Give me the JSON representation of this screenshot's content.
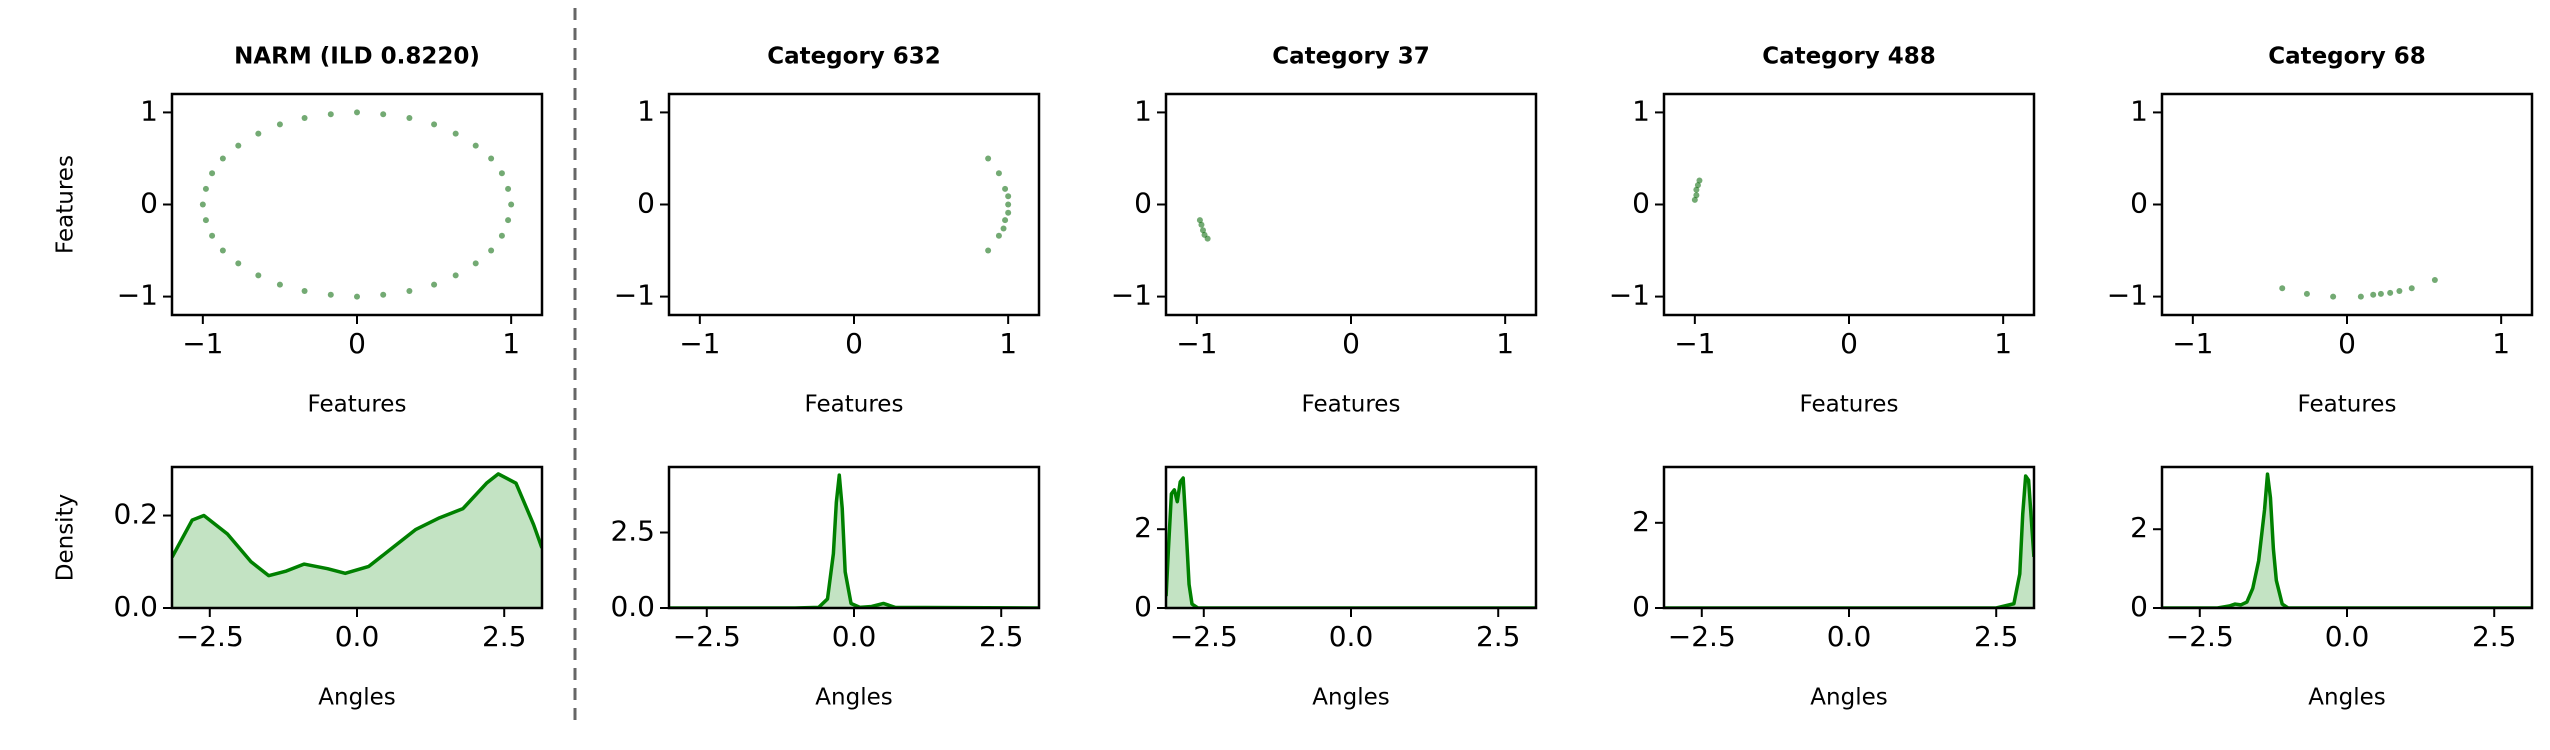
{
  "chart_data": [
    {
      "type": "scatter",
      "title": "NARM (ILD 0.8220)",
      "xlabel": "Features",
      "ylabel": "Features",
      "color": "#006400",
      "opacity": 0.55,
      "x": [
        1,
        0.98,
        0.94,
        0.87,
        0.77,
        0.64,
        0.5,
        0.34,
        0.17,
        0,
        -0.17,
        -0.34,
        -0.5,
        -0.64,
        -0.77,
        -0.87,
        -0.94,
        -0.98,
        -1,
        -0.98,
        -0.94,
        -0.87,
        -0.77,
        -0.64,
        -0.5,
        -0.34,
        -0.17,
        0,
        0.17,
        0.34,
        0.5,
        0.64,
        0.77,
        0.87,
        0.94,
        0.98
      ],
      "y": [
        0,
        0.17,
        0.34,
        0.5,
        0.64,
        0.77,
        0.87,
        0.94,
        0.98,
        1,
        0.98,
        0.94,
        0.87,
        0.77,
        0.64,
        0.5,
        0.34,
        0.17,
        0,
        -0.17,
        -0.34,
        -0.5,
        -0.64,
        -0.77,
        -0.87,
        -0.94,
        -0.98,
        -1,
        -0.98,
        -0.94,
        -0.87,
        -0.77,
        -0.64,
        -0.5,
        -0.34,
        -0.17
      ],
      "xlim": [
        -1.2,
        1.2
      ],
      "ylim": [
        -1.2,
        1.2
      ],
      "xticks": [
        {
          "value": -1,
          "label": "−1"
        },
        0,
        1
      ],
      "yticks": [
        {
          "value": -1,
          "label": "−1"
        },
        0,
        1
      ]
    },
    {
      "type": "area",
      "xlabel": "Angles",
      "ylabel": "Density",
      "color": "#008000",
      "fill": "#c3e3c3",
      "x": [
        -3.14,
        -2.8,
        -2.6,
        -2.2,
        -1.8,
        -1.5,
        -1.2,
        -0.9,
        -0.5,
        -0.2,
        0.2,
        0.6,
        1.0,
        1.4,
        1.8,
        2.2,
        2.4,
        2.7,
        3.0,
        3.14
      ],
      "values": [
        0.11,
        0.19,
        0.2,
        0.16,
        0.1,
        0.07,
        0.08,
        0.095,
        0.085,
        0.075,
        0.09,
        0.13,
        0.17,
        0.195,
        0.215,
        0.27,
        0.29,
        0.27,
        0.18,
        0.13
      ],
      "xlim": [
        -3.14159,
        3.14159
      ],
      "ylim": [
        0,
        0.305
      ],
      "xticks": [
        {
          "value": -2.5,
          "label": "−2.5"
        },
        {
          "value": 0,
          "label": "0.0"
        },
        2.5
      ],
      "yticks": [
        {
          "value": 0,
          "label": "0.0"
        },
        0.2
      ]
    },
    {
      "type": "scatter",
      "title": "Category 632",
      "xlabel": "Features",
      "color": "#006400",
      "opacity": 0.55,
      "x": [
        0.87,
        0.94,
        0.97,
        0.98,
        1.0,
        1,
        1.0,
        0.98,
        0.94,
        0.87
      ],
      "y": [
        -0.5,
        -0.34,
        -0.26,
        -0.17,
        -0.09,
        0,
        0.09,
        0.17,
        0.34,
        0.5
      ],
      "xlim": [
        -1.2,
        1.2
      ],
      "ylim": [
        -1.2,
        1.2
      ],
      "xticks": [
        {
          "value": -1,
          "label": "−1"
        },
        0,
        1
      ],
      "yticks": [
        {
          "value": -1,
          "label": "−1"
        },
        0,
        1
      ]
    },
    {
      "type": "area",
      "xlabel": "Angles",
      "color": "#008000",
      "fill": "#c3e3c3",
      "x": [
        -3.14,
        -1.0,
        -0.6,
        -0.45,
        -0.35,
        -0.3,
        -0.25,
        -0.2,
        -0.15,
        -0.05,
        0.1,
        0.3,
        0.5,
        0.7,
        3.14
      ],
      "values": [
        0,
        0,
        0.02,
        0.3,
        1.8,
        3.5,
        4.4,
        3.3,
        1.2,
        0.15,
        0.02,
        0.05,
        0.15,
        0.02,
        0
      ],
      "xlim": [
        -3.14159,
        3.14159
      ],
      "ylim": [
        0,
        4.67
      ],
      "xticks": [
        {
          "value": -2.5,
          "label": "−2.5"
        },
        {
          "value": 0,
          "label": "0.0"
        },
        2.5
      ],
      "yticks": [
        {
          "value": 0,
          "label": "0.0"
        },
        2.5
      ]
    },
    {
      "type": "scatter",
      "title": "Category 37",
      "xlabel": "Features",
      "color": "#006400",
      "opacity": 0.55,
      "x": [
        -0.98,
        -0.97,
        -0.96,
        -0.95,
        -0.93
      ],
      "y": [
        -0.17,
        -0.22,
        -0.28,
        -0.33,
        -0.37
      ],
      "xlim": [
        -1.2,
        1.2
      ],
      "ylim": [
        -1.2,
        1.2
      ],
      "xticks": [
        {
          "value": -1,
          "label": "−1"
        },
        0,
        1
      ],
      "yticks": [
        {
          "value": -1,
          "label": "−1"
        },
        0,
        1
      ]
    },
    {
      "type": "area",
      "xlabel": "Angles",
      "color": "#008000",
      "fill": "#c3e3c3",
      "x": [
        -3.14,
        -3.1,
        -3.05,
        -3.0,
        -2.95,
        -2.9,
        -2.85,
        -2.8,
        -2.75,
        -2.7,
        -2.6,
        3.14
      ],
      "values": [
        0.3,
        1.5,
        2.9,
        3.0,
        2.7,
        3.2,
        3.3,
        2.0,
        0.6,
        0.1,
        0,
        0
      ],
      "xlim": [
        -3.14159,
        3.14159
      ],
      "ylim": [
        0,
        3.58
      ],
      "xticks": [
        {
          "value": -2.5,
          "label": "−2.5"
        },
        {
          "value": 0,
          "label": "0.0"
        },
        2.5
      ],
      "yticks": [
        0,
        2
      ]
    },
    {
      "type": "scatter",
      "title": "Category 488",
      "xlabel": "Features",
      "color": "#006400",
      "opacity": 0.55,
      "x": [
        -0.97,
        -0.98,
        -0.99,
        -0.99,
        -1.0
      ],
      "y": [
        0.26,
        0.21,
        0.16,
        0.1,
        0.05
      ],
      "xlim": [
        -1.2,
        1.2
      ],
      "ylim": [
        -1.2,
        1.2
      ],
      "xticks": [
        {
          "value": -1,
          "label": "−1"
        },
        0,
        1
      ],
      "yticks": [
        {
          "value": -1,
          "label": "−1"
        },
        0,
        1
      ]
    },
    {
      "type": "area",
      "xlabel": "Angles",
      "color": "#008000",
      "fill": "#c3e3c3",
      "x": [
        -3.14,
        2.5,
        2.8,
        2.9,
        2.95,
        3.0,
        3.05,
        3.1,
        3.14
      ],
      "values": [
        0,
        0,
        0.1,
        0.8,
        2.2,
        3.1,
        3.0,
        2.0,
        1.2
      ],
      "xlim": [
        -3.14159,
        3.14159
      ],
      "ylim": [
        0,
        3.31
      ],
      "xticks": [
        {
          "value": -2.5,
          "label": "−2.5"
        },
        {
          "value": 0,
          "label": "0.0"
        },
        2.5
      ],
      "yticks": [
        0,
        2
      ]
    },
    {
      "type": "scatter",
      "title": "Category 68",
      "xlabel": "Features",
      "color": "#006400",
      "opacity": 0.55,
      "x": [
        -0.42,
        -0.26,
        -0.09,
        0.09,
        0.17,
        0.22,
        0.28,
        0.34,
        0.42,
        0.57
      ],
      "y": [
        -0.91,
        -0.97,
        -1.0,
        -1.0,
        -0.98,
        -0.97,
        -0.96,
        -0.94,
        -0.91,
        -0.82
      ],
      "xlim": [
        -1.2,
        1.2
      ],
      "ylim": [
        -1.2,
        1.2
      ],
      "xticks": [
        {
          "value": -1,
          "label": "−1"
        },
        0,
        1
      ],
      "yticks": [
        {
          "value": -1,
          "label": "−1"
        },
        0,
        1
      ]
    },
    {
      "type": "area",
      "xlabel": "Angles",
      "color": "#008000",
      "fill": "#c3e3c3",
      "x": [
        -3.14,
        -2.2,
        -2.0,
        -1.9,
        -1.8,
        -1.7,
        -1.6,
        -1.5,
        -1.4,
        -1.35,
        -1.3,
        -1.25,
        -1.2,
        -1.1,
        -1.0,
        3.14
      ],
      "values": [
        0,
        0,
        0.05,
        0.1,
        0.08,
        0.15,
        0.5,
        1.2,
        2.5,
        3.4,
        2.8,
        1.5,
        0.7,
        0.1,
        0,
        0
      ],
      "xlim": [
        -3.14159,
        3.14159
      ],
      "ylim": [
        0,
        3.58
      ],
      "xticks": [
        {
          "value": -2.5,
          "label": "−2.5"
        },
        {
          "value": 0,
          "label": "0.0"
        },
        2.5
      ],
      "yticks": [
        0,
        2
      ]
    }
  ]
}
